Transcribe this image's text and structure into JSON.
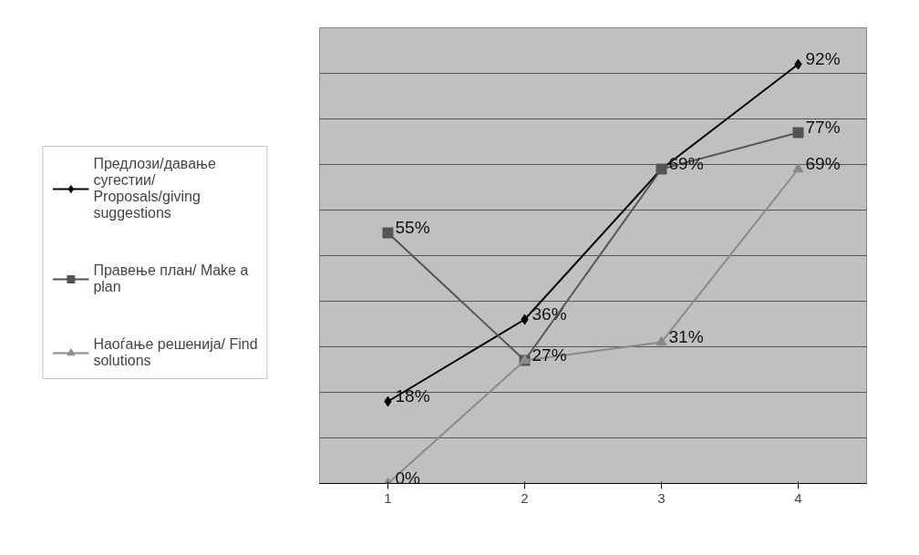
{
  "chart_data": {
    "type": "line",
    "categories": [
      "1",
      "2",
      "3",
      "4"
    ],
    "series": [
      {
        "name": "Предлози/давање сугестии/ Proposals/giving suggestions",
        "color": "#000000",
        "marker": "diamond",
        "values": [
          18,
          36,
          69,
          92
        ],
        "value_labels": [
          "18%",
          "36%",
          null,
          "92%"
        ]
      },
      {
        "name": "Правење план/ Make a plan",
        "color": "#555555",
        "marker": "square",
        "values": [
          55,
          27,
          69,
          77
        ],
        "value_labels": [
          "55%",
          null,
          "69%",
          "77%"
        ]
      },
      {
        "name": "Наоѓање решенија/ Find solutions",
        "color": "#8a8a8a",
        "marker": "triangle",
        "values": [
          0,
          27,
          31,
          69
        ],
        "value_labels": [
          "0%",
          "27%",
          "31%",
          "69%"
        ]
      }
    ],
    "ylim": [
      0,
      100
    ],
    "yticks": [
      {
        "value": 0,
        "label": null
      },
      {
        "value": 10,
        "label": null
      },
      {
        "value": 20,
        "label": null
      },
      {
        "value": 30,
        "label": null
      },
      {
        "value": 40,
        "label": null
      },
      {
        "value": 50,
        "label": null
      },
      {
        "value": 60,
        "label": null
      },
      {
        "value": 70,
        "label": null
      },
      {
        "value": 80,
        "label": null
      },
      {
        "value": 90,
        "label": null
      },
      {
        "value": 100,
        "label": null
      }
    ],
    "tick_labels": "x",
    "grid": "y",
    "legend": "left",
    "line_style": "solid"
  }
}
